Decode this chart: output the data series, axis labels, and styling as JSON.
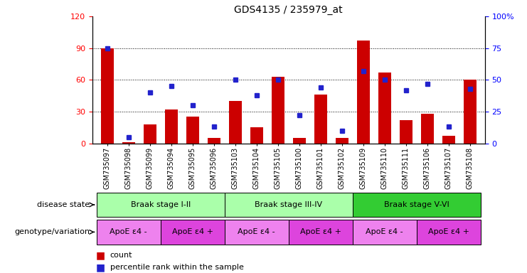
{
  "title": "GDS4135 / 235979_at",
  "samples": [
    "GSM735097",
    "GSM735098",
    "GSM735099",
    "GSM735094",
    "GSM735095",
    "GSM735096",
    "GSM735103",
    "GSM735104",
    "GSM735105",
    "GSM735100",
    "GSM735101",
    "GSM735102",
    "GSM735109",
    "GSM735110",
    "GSM735111",
    "GSM735106",
    "GSM735107",
    "GSM735108"
  ],
  "counts": [
    90,
    1,
    18,
    32,
    25,
    5,
    40,
    15,
    63,
    5,
    46,
    5,
    97,
    67,
    22,
    28,
    7,
    60
  ],
  "percentiles": [
    75,
    5,
    40,
    45,
    30,
    13,
    50,
    38,
    50,
    22,
    44,
    10,
    57,
    50,
    42,
    47,
    13,
    43
  ],
  "ylim_left": [
    0,
    120
  ],
  "ylim_right": [
    0,
    100
  ],
  "yticks_left": [
    0,
    30,
    60,
    90,
    120
  ],
  "yticks_right": [
    0,
    25,
    50,
    75,
    100
  ],
  "bar_color": "#CC0000",
  "dot_color": "#2222CC",
  "disease_state_groups": [
    {
      "label": "Braak stage I-II",
      "start": 0,
      "end": 6
    },
    {
      "label": "Braak stage III-IV",
      "start": 6,
      "end": 12
    },
    {
      "label": "Braak stage V-VI",
      "start": 12,
      "end": 18
    }
  ],
  "disease_state_colors": [
    "#AAFFAA",
    "#AAFFAA",
    "#33CC33"
  ],
  "genotype_groups": [
    {
      "label": "ApoE ε4 -",
      "start": 0,
      "end": 3
    },
    {
      "label": "ApoE ε4 +",
      "start": 3,
      "end": 6
    },
    {
      "label": "ApoE ε4 -",
      "start": 6,
      "end": 9
    },
    {
      "label": "ApoE ε4 +",
      "start": 9,
      "end": 12
    },
    {
      "label": "ApoE ε4 -",
      "start": 12,
      "end": 15
    },
    {
      "label": "ApoE ε4 +",
      "start": 15,
      "end": 18
    }
  ],
  "genotype_colors": [
    "#EE82EE",
    "#DD44DD",
    "#EE82EE",
    "#DD44DD",
    "#EE82EE",
    "#DD44DD"
  ],
  "legend_count_label": "count",
  "legend_pct_label": "percentile rank within the sample",
  "disease_state_label": "disease state",
  "genotype_label": "genotype/variation"
}
